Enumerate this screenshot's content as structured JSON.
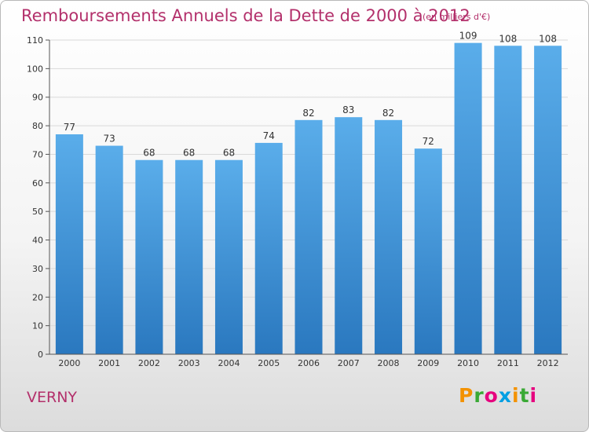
{
  "chart_data": {
    "type": "bar",
    "title": "Remboursements Annuels de la Dette de 2000 à 2012",
    "subtitle": "(en milliers d'€)",
    "categories": [
      "2000",
      "2001",
      "2002",
      "2003",
      "2004",
      "2005",
      "2006",
      "2007",
      "2008",
      "2009",
      "2010",
      "2011",
      "2012"
    ],
    "values": [
      77,
      73,
      68,
      68,
      68,
      74,
      82,
      83,
      82,
      72,
      109,
      108,
      108
    ],
    "ylim": [
      0,
      110
    ],
    "yticks": [
      0,
      10,
      20,
      30,
      40,
      50,
      60,
      70,
      80,
      90,
      100,
      110
    ],
    "grid": true,
    "bar_color_top": "#5aadea",
    "bar_color_bottom": "#2a78bf"
  },
  "footer": {
    "place": "VERNY",
    "logo_text": "Proxiti"
  },
  "colors": {
    "title": "#b3306b",
    "grid": "#d9d9d9",
    "axis": "#555555"
  }
}
